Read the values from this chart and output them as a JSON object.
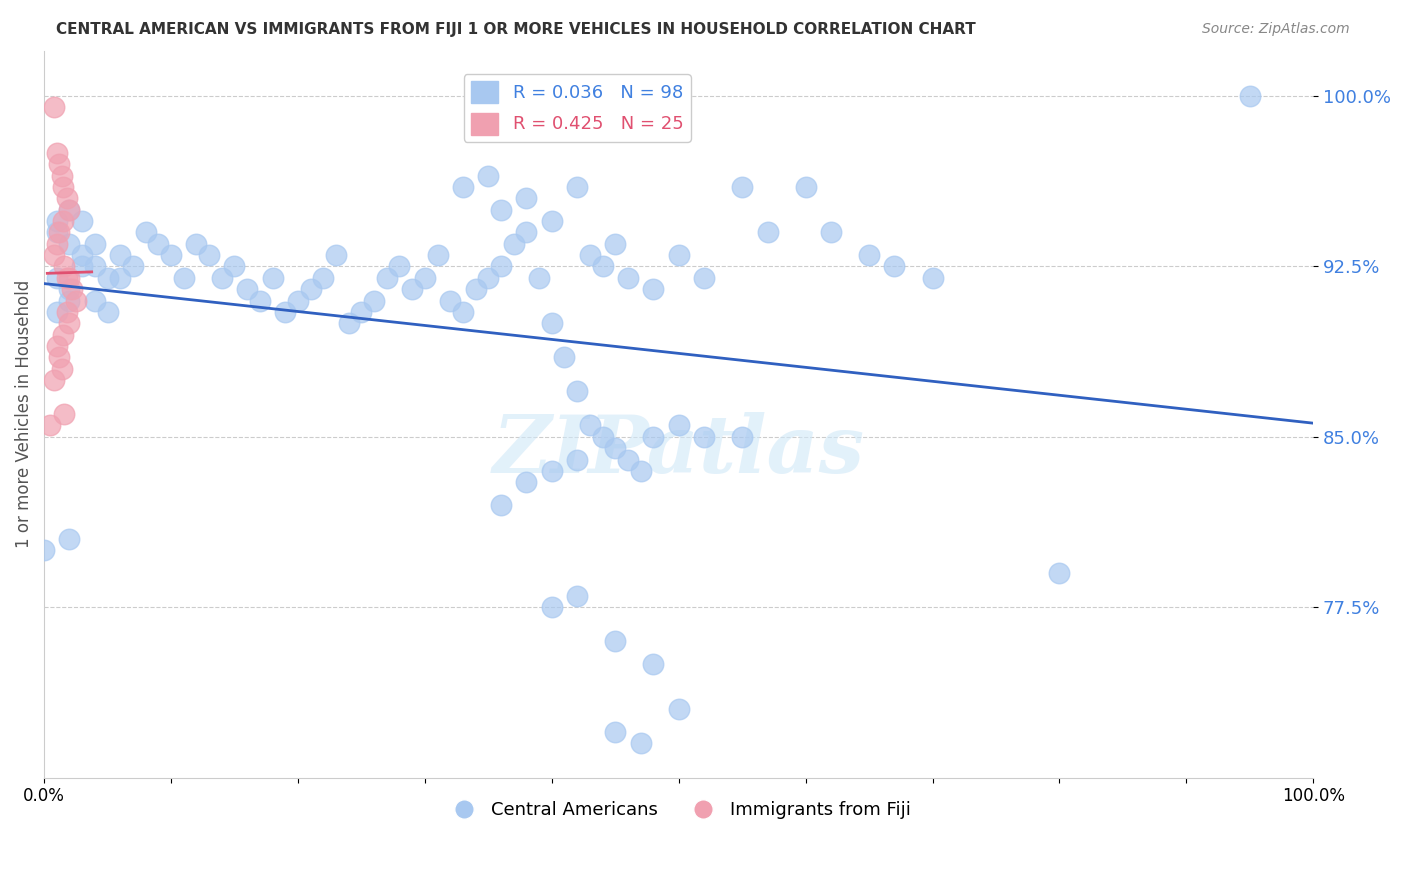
{
  "title": "CENTRAL AMERICAN VS IMMIGRANTS FROM FIJI 1 OR MORE VEHICLES IN HOUSEHOLD CORRELATION CHART",
  "source": "Source: ZipAtlas.com",
  "xlabel": "",
  "ylabel": "1 or more Vehicles in Household",
  "xlim": [
    0.0,
    1.0
  ],
  "ylim": [
    0.7,
    1.02
  ],
  "yticks": [
    0.775,
    0.85,
    0.925,
    1.0
  ],
  "ytick_labels": [
    "77.5%",
    "85.0%",
    "92.5%",
    "100.0%"
  ],
  "xticks": [
    0.0,
    0.1,
    0.2,
    0.3,
    0.4,
    0.5,
    0.6,
    0.7,
    0.8,
    0.9,
    1.0
  ],
  "xtick_labels": [
    "0.0%",
    "",
    "",
    "",
    "",
    "",
    "",
    "",
    "",
    "",
    "100.0%"
  ],
  "blue_R": 0.036,
  "blue_N": 98,
  "pink_R": 0.425,
  "pink_N": 25,
  "legend_label_blue": "Central Americans",
  "legend_label_pink": "Immigrants from Fiji",
  "watermark": "ZIPatlas",
  "blue_color": "#a8c8f0",
  "blue_line_color": "#3060c0",
  "pink_color": "#f0a0b0",
  "pink_line_color": "#e05070",
  "blue_scatter": [
    [
      0.02,
      0.805
    ],
    [
      0.01,
      0.92
    ],
    [
      0.02,
      0.915
    ],
    [
      0.03,
      0.93
    ],
    [
      0.02,
      0.935
    ],
    [
      0.01,
      0.94
    ],
    [
      0.01,
      0.945
    ],
    [
      0.02,
      0.95
    ],
    [
      0.03,
      0.945
    ],
    [
      0.04,
      0.935
    ],
    [
      0.05,
      0.92
    ],
    [
      0.04,
      0.925
    ],
    [
      0.03,
      0.925
    ],
    [
      0.02,
      0.91
    ],
    [
      0.01,
      0.905
    ],
    [
      0.04,
      0.91
    ],
    [
      0.05,
      0.905
    ],
    [
      0.06,
      0.92
    ],
    [
      0.07,
      0.925
    ],
    [
      0.06,
      0.93
    ],
    [
      0.08,
      0.94
    ],
    [
      0.09,
      0.935
    ],
    [
      0.1,
      0.93
    ],
    [
      0.11,
      0.92
    ],
    [
      0.12,
      0.935
    ],
    [
      0.13,
      0.93
    ],
    [
      0.14,
      0.92
    ],
    [
      0.15,
      0.925
    ],
    [
      0.16,
      0.915
    ],
    [
      0.17,
      0.91
    ],
    [
      0.18,
      0.92
    ],
    [
      0.19,
      0.905
    ],
    [
      0.2,
      0.91
    ],
    [
      0.21,
      0.915
    ],
    [
      0.22,
      0.92
    ],
    [
      0.23,
      0.93
    ],
    [
      0.24,
      0.9
    ],
    [
      0.25,
      0.905
    ],
    [
      0.26,
      0.91
    ],
    [
      0.27,
      0.92
    ],
    [
      0.28,
      0.925
    ],
    [
      0.29,
      0.915
    ],
    [
      0.3,
      0.92
    ],
    [
      0.31,
      0.93
    ],
    [
      0.32,
      0.91
    ],
    [
      0.33,
      0.905
    ],
    [
      0.34,
      0.915
    ],
    [
      0.35,
      0.92
    ],
    [
      0.36,
      0.925
    ],
    [
      0.37,
      0.935
    ],
    [
      0.38,
      0.94
    ],
    [
      0.39,
      0.92
    ],
    [
      0.4,
      0.9
    ],
    [
      0.41,
      0.885
    ],
    [
      0.42,
      0.87
    ],
    [
      0.43,
      0.855
    ],
    [
      0.44,
      0.85
    ],
    [
      0.45,
      0.845
    ],
    [
      0.46,
      0.84
    ],
    [
      0.47,
      0.835
    ],
    [
      0.33,
      0.96
    ],
    [
      0.35,
      0.965
    ],
    [
      0.36,
      0.95
    ],
    [
      0.38,
      0.955
    ],
    [
      0.4,
      0.945
    ],
    [
      0.42,
      0.96
    ],
    [
      0.43,
      0.93
    ],
    [
      0.44,
      0.925
    ],
    [
      0.45,
      0.935
    ],
    [
      0.46,
      0.92
    ],
    [
      0.48,
      0.915
    ],
    [
      0.5,
      0.93
    ],
    [
      0.52,
      0.92
    ],
    [
      0.55,
      0.96
    ],
    [
      0.57,
      0.94
    ],
    [
      0.6,
      0.96
    ],
    [
      0.62,
      0.94
    ],
    [
      0.65,
      0.93
    ],
    [
      0.67,
      0.925
    ],
    [
      0.7,
      0.92
    ],
    [
      0.48,
      0.85
    ],
    [
      0.5,
      0.855
    ],
    [
      0.52,
      0.85
    ],
    [
      0.55,
      0.85
    ],
    [
      0.4,
      0.775
    ],
    [
      0.42,
      0.78
    ],
    [
      0.45,
      0.76
    ],
    [
      0.48,
      0.75
    ],
    [
      0.45,
      0.72
    ],
    [
      0.47,
      0.715
    ],
    [
      0.5,
      0.73
    ],
    [
      0.8,
      0.79
    ],
    [
      0.36,
      0.82
    ],
    [
      0.38,
      0.83
    ],
    [
      0.4,
      0.835
    ],
    [
      0.42,
      0.84
    ],
    [
      0.95,
      1.0
    ],
    [
      0.0,
      0.8
    ]
  ],
  "pink_scatter": [
    [
      0.008,
      0.995
    ],
    [
      0.01,
      0.975
    ],
    [
      0.012,
      0.97
    ],
    [
      0.014,
      0.965
    ],
    [
      0.015,
      0.96
    ],
    [
      0.018,
      0.955
    ],
    [
      0.02,
      0.95
    ],
    [
      0.015,
      0.945
    ],
    [
      0.012,
      0.94
    ],
    [
      0.01,
      0.935
    ],
    [
      0.008,
      0.93
    ],
    [
      0.016,
      0.925
    ],
    [
      0.018,
      0.92
    ],
    [
      0.02,
      0.92
    ],
    [
      0.022,
      0.915
    ],
    [
      0.025,
      0.91
    ],
    [
      0.018,
      0.905
    ],
    [
      0.02,
      0.9
    ],
    [
      0.015,
      0.895
    ],
    [
      0.01,
      0.89
    ],
    [
      0.012,
      0.885
    ],
    [
      0.014,
      0.88
    ],
    [
      0.008,
      0.875
    ],
    [
      0.016,
      0.86
    ],
    [
      0.005,
      0.855
    ]
  ]
}
